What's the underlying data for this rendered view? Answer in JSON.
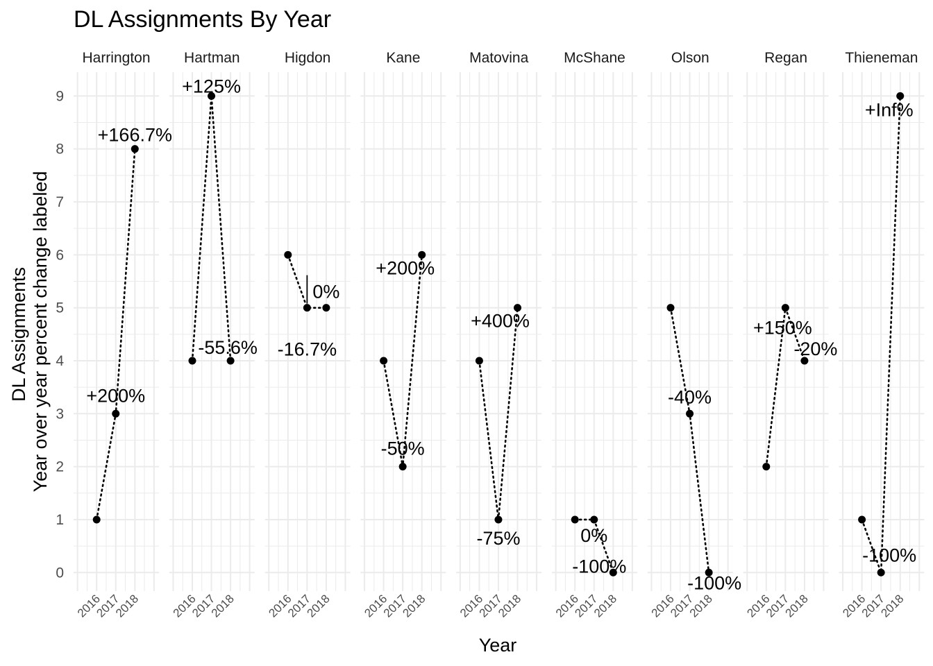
{
  "chart_data": {
    "type": "line",
    "title": "DL Assignments By Year",
    "xlabel": "Year",
    "ylabel_line1": "DL Assignments",
    "ylabel_line2": "Year over year percent change labeled",
    "x": [
      "2016",
      "2017",
      "2018"
    ],
    "yticks": [
      0,
      1,
      2,
      3,
      4,
      5,
      6,
      7,
      8,
      9
    ],
    "ylim": [
      -0.35,
      9.45
    ],
    "grid": true,
    "facets": [
      {
        "name": "Harrington",
        "values": [
          1,
          3,
          8
        ],
        "labels": [
          "",
          "+200%",
          "+166.7%"
        ]
      },
      {
        "name": "Hartman",
        "values": [
          4,
          9,
          4
        ],
        "labels": [
          "",
          "+125%",
          "-55.6%"
        ]
      },
      {
        "name": "Higdon",
        "values": [
          6,
          5,
          5
        ],
        "labels": [
          "",
          "-16.7%",
          "0%"
        ]
      },
      {
        "name": "Kane",
        "values": [
          4,
          2,
          6
        ],
        "labels": [
          "",
          "-50%",
          "+200%"
        ]
      },
      {
        "name": "Matovina",
        "values": [
          4,
          1,
          5
        ],
        "labels": [
          "",
          "-75%",
          "+400%"
        ]
      },
      {
        "name": "McShane",
        "values": [
          1,
          1,
          0
        ],
        "labels": [
          "",
          "0%",
          "-100%"
        ]
      },
      {
        "name": "Olson",
        "values": [
          5,
          3,
          0
        ],
        "labels": [
          "",
          "-40%",
          "-100%"
        ]
      },
      {
        "name": "Regan",
        "values": [
          2,
          5,
          4
        ],
        "labels": [
          "",
          "+150%",
          "-20%"
        ]
      },
      {
        "name": "Thieneman",
        "values": [
          1,
          0,
          9
        ],
        "labels": [
          "",
          "-100%",
          "+Inf%"
        ]
      }
    ]
  }
}
